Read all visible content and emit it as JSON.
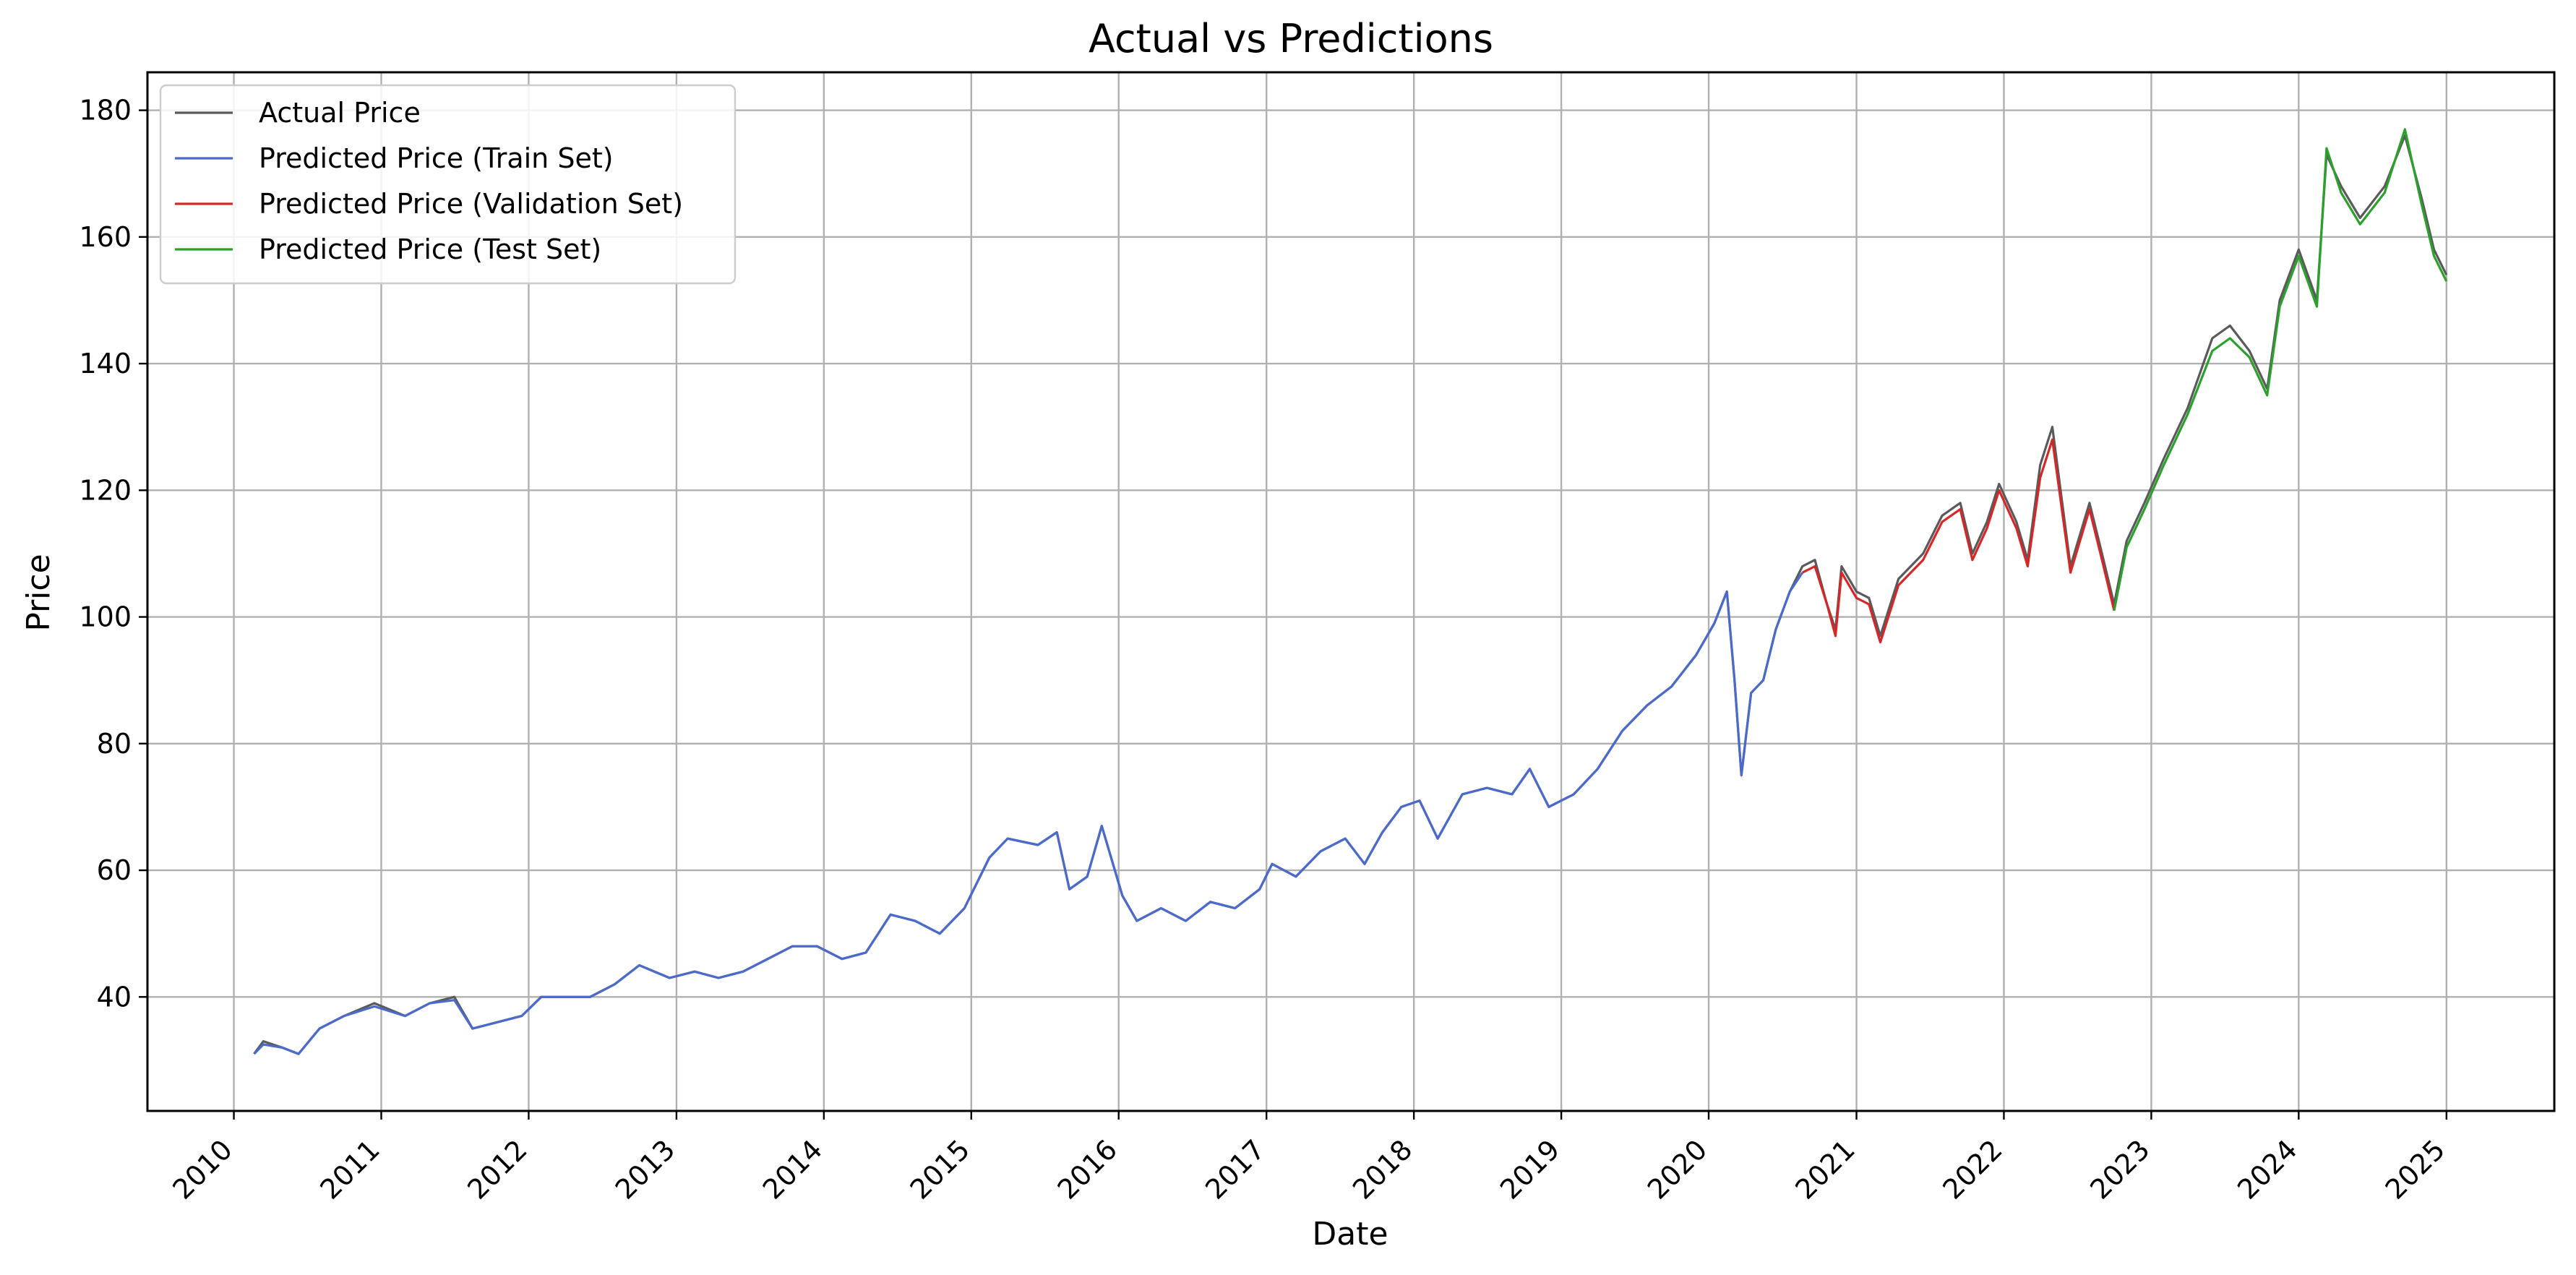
{
  "chart_data": {
    "type": "line",
    "title": "Actual vs Predictions",
    "xlabel": "Date",
    "ylabel": "Price",
    "xlim": [
      "2009-06-01",
      "2025-09-25"
    ],
    "ylim": [
      22,
      186
    ],
    "x_ticks": [
      "2010",
      "2011",
      "2012",
      "2013",
      "2014",
      "2015",
      "2016",
      "2017",
      "2018",
      "2019",
      "2020",
      "2021",
      "2022",
      "2023",
      "2024",
      "2025"
    ],
    "y_ticks": [
      40,
      60,
      80,
      100,
      120,
      140,
      160,
      180
    ],
    "grid": true,
    "legend_position": "upper-left",
    "series": [
      {
        "name": "Actual Price",
        "color": "#5a5a5a",
        "points": [
          [
            "2010-02-20",
            31
          ],
          [
            "2010-03-15",
            33
          ],
          [
            "2010-05-01",
            32
          ],
          [
            "2010-06-10",
            31
          ],
          [
            "2010-08-01",
            35
          ],
          [
            "2010-10-01",
            37
          ],
          [
            "2010-12-15",
            39
          ],
          [
            "2011-03-01",
            37
          ],
          [
            "2011-05-01",
            39
          ],
          [
            "2011-07-01",
            40
          ],
          [
            "2011-08-15",
            35
          ],
          [
            "2011-10-15",
            36
          ],
          [
            "2011-12-15",
            37
          ],
          [
            "2012-02-01",
            40
          ],
          [
            "2012-04-01",
            40
          ],
          [
            "2012-06-01",
            40
          ],
          [
            "2012-08-01",
            42
          ],
          [
            "2012-10-01",
            45
          ],
          [
            "2012-12-15",
            43
          ],
          [
            "2013-02-15",
            44
          ],
          [
            "2013-04-15",
            43
          ],
          [
            "2013-06-15",
            44
          ],
          [
            "2013-08-15",
            46
          ],
          [
            "2013-10-15",
            48
          ],
          [
            "2013-12-15",
            48
          ],
          [
            "2014-02-15",
            46
          ],
          [
            "2014-04-15",
            47
          ],
          [
            "2014-06-15",
            53
          ],
          [
            "2014-08-15",
            52
          ],
          [
            "2014-10-15",
            50
          ],
          [
            "2014-12-15",
            54
          ],
          [
            "2015-02-15",
            62
          ],
          [
            "2015-04-01",
            65
          ],
          [
            "2015-06-15",
            64
          ],
          [
            "2015-08-01",
            66
          ],
          [
            "2015-09-01",
            57
          ],
          [
            "2015-10-15",
            59
          ],
          [
            "2015-11-20",
            67
          ],
          [
            "2016-01-10",
            56
          ],
          [
            "2016-02-15",
            52
          ],
          [
            "2016-04-15",
            54
          ],
          [
            "2016-06-15",
            52
          ],
          [
            "2016-08-15",
            55
          ],
          [
            "2016-10-15",
            54
          ],
          [
            "2016-12-15",
            57
          ],
          [
            "2017-01-15",
            61
          ],
          [
            "2017-03-15",
            59
          ],
          [
            "2017-05-15",
            63
          ],
          [
            "2017-07-15",
            65
          ],
          [
            "2017-09-01",
            61
          ],
          [
            "2017-10-15",
            66
          ],
          [
            "2017-12-01",
            70
          ],
          [
            "2018-01-15",
            71
          ],
          [
            "2018-03-01",
            65
          ],
          [
            "2018-05-01",
            72
          ],
          [
            "2018-07-01",
            73
          ],
          [
            "2018-09-01",
            72
          ],
          [
            "2018-10-15",
            76
          ],
          [
            "2018-12-01",
            70
          ],
          [
            "2019-02-01",
            72
          ],
          [
            "2019-04-01",
            76
          ],
          [
            "2019-06-01",
            82
          ],
          [
            "2019-08-01",
            86
          ],
          [
            "2019-10-01",
            89
          ],
          [
            "2019-12-01",
            94
          ],
          [
            "2020-01-15",
            99
          ],
          [
            "2020-02-15",
            104
          ],
          [
            "2020-03-05",
            90
          ],
          [
            "2020-03-22",
            75
          ],
          [
            "2020-04-15",
            88
          ],
          [
            "2020-05-15",
            90
          ],
          [
            "2020-06-15",
            98
          ],
          [
            "2020-07-20",
            104
          ],
          [
            "2020-08-20",
            108
          ],
          [
            "2020-09-20",
            109
          ],
          [
            "2020-10-20",
            102
          ],
          [
            "2020-11-10",
            98
          ],
          [
            "2020-11-25",
            108
          ],
          [
            "2021-01-01",
            104
          ],
          [
            "2021-02-01",
            103
          ],
          [
            "2021-03-01",
            97
          ],
          [
            "2021-04-15",
            106
          ],
          [
            "2021-06-15",
            110
          ],
          [
            "2021-08-01",
            116
          ],
          [
            "2021-09-15",
            118
          ],
          [
            "2021-10-15",
            110
          ],
          [
            "2021-11-20",
            115
          ],
          [
            "2021-12-20",
            121
          ],
          [
            "2022-02-01",
            115
          ],
          [
            "2022-03-01",
            109
          ],
          [
            "2022-04-01",
            124
          ],
          [
            "2022-05-01",
            130
          ],
          [
            "2022-06-15",
            108
          ],
          [
            "2022-08-01",
            118
          ],
          [
            "2022-09-01",
            110
          ],
          [
            "2022-10-01",
            102
          ],
          [
            "2022-11-01",
            112
          ],
          [
            "2022-12-15",
            118
          ],
          [
            "2023-02-01",
            125
          ],
          [
            "2023-04-01",
            133
          ],
          [
            "2023-06-01",
            144
          ],
          [
            "2023-07-15",
            146
          ],
          [
            "2023-09-01",
            142
          ],
          [
            "2023-10-15",
            136
          ],
          [
            "2023-11-15",
            150
          ],
          [
            "2024-01-01",
            158
          ],
          [
            "2024-02-15",
            150
          ],
          [
            "2024-03-10",
            173
          ],
          [
            "2024-04-15",
            168
          ],
          [
            "2024-06-01",
            163
          ],
          [
            "2024-08-01",
            168
          ],
          [
            "2024-09-20",
            176
          ],
          [
            "2024-11-01",
            166
          ],
          [
            "2024-12-01",
            158
          ],
          [
            "2025-01-01",
            154
          ]
        ]
      },
      {
        "name": "Predicted Price (Train Set)",
        "color": "#4c6ac9",
        "points": [
          [
            "2010-02-20",
            31
          ],
          [
            "2010-03-15",
            32.5
          ],
          [
            "2010-05-01",
            32
          ],
          [
            "2010-06-10",
            31
          ],
          [
            "2010-08-01",
            35
          ],
          [
            "2010-10-01",
            37
          ],
          [
            "2010-12-15",
            38.5
          ],
          [
            "2011-03-01",
            37
          ],
          [
            "2011-05-01",
            39
          ],
          [
            "2011-07-01",
            39.5
          ],
          [
            "2011-08-15",
            35
          ],
          [
            "2011-10-15",
            36
          ],
          [
            "2011-12-15",
            37
          ],
          [
            "2012-02-01",
            40
          ],
          [
            "2012-04-01",
            40
          ],
          [
            "2012-06-01",
            40
          ],
          [
            "2012-08-01",
            42
          ],
          [
            "2012-10-01",
            45
          ],
          [
            "2012-12-15",
            43
          ],
          [
            "2013-02-15",
            44
          ],
          [
            "2013-04-15",
            43
          ],
          [
            "2013-06-15",
            44
          ],
          [
            "2013-08-15",
            46
          ],
          [
            "2013-10-15",
            48
          ],
          [
            "2013-12-15",
            48
          ],
          [
            "2014-02-15",
            46
          ],
          [
            "2014-04-15",
            47
          ],
          [
            "2014-06-15",
            53
          ],
          [
            "2014-08-15",
            52
          ],
          [
            "2014-10-15",
            50
          ],
          [
            "2014-12-15",
            54
          ],
          [
            "2015-02-15",
            62
          ],
          [
            "2015-04-01",
            65
          ],
          [
            "2015-06-15",
            64
          ],
          [
            "2015-08-01",
            66
          ],
          [
            "2015-09-01",
            57
          ],
          [
            "2015-10-15",
            59
          ],
          [
            "2015-11-20",
            67
          ],
          [
            "2016-01-10",
            56
          ],
          [
            "2016-02-15",
            52
          ],
          [
            "2016-04-15",
            54
          ],
          [
            "2016-06-15",
            52
          ],
          [
            "2016-08-15",
            55
          ],
          [
            "2016-10-15",
            54
          ],
          [
            "2016-12-15",
            57
          ],
          [
            "2017-01-15",
            61
          ],
          [
            "2017-03-15",
            59
          ],
          [
            "2017-05-15",
            63
          ],
          [
            "2017-07-15",
            65
          ],
          [
            "2017-09-01",
            61
          ],
          [
            "2017-10-15",
            66
          ],
          [
            "2017-12-01",
            70
          ],
          [
            "2018-01-15",
            71
          ],
          [
            "2018-03-01",
            65
          ],
          [
            "2018-05-01",
            72
          ],
          [
            "2018-07-01",
            73
          ],
          [
            "2018-09-01",
            72
          ],
          [
            "2018-10-15",
            76
          ],
          [
            "2018-12-01",
            70
          ],
          [
            "2019-02-01",
            72
          ],
          [
            "2019-04-01",
            76
          ],
          [
            "2019-06-01",
            82
          ],
          [
            "2019-08-01",
            86
          ],
          [
            "2019-10-01",
            89
          ],
          [
            "2019-12-01",
            94
          ],
          [
            "2020-01-15",
            99
          ],
          [
            "2020-02-15",
            104
          ],
          [
            "2020-03-05",
            90
          ],
          [
            "2020-03-22",
            75
          ],
          [
            "2020-04-15",
            88
          ],
          [
            "2020-05-15",
            90
          ],
          [
            "2020-06-15",
            98
          ],
          [
            "2020-07-20",
            104
          ],
          [
            "2020-08-20",
            107
          ]
        ]
      },
      {
        "name": "Predicted Price (Validation Set)",
        "color": "#d62728",
        "points": [
          [
            "2020-08-20",
            107
          ],
          [
            "2020-09-20",
            108
          ],
          [
            "2020-10-20",
            102
          ],
          [
            "2020-11-10",
            97
          ],
          [
            "2020-11-25",
            107
          ],
          [
            "2021-01-01",
            103
          ],
          [
            "2021-02-01",
            102
          ],
          [
            "2021-03-01",
            96
          ],
          [
            "2021-04-15",
            105
          ],
          [
            "2021-06-15",
            109
          ],
          [
            "2021-08-01",
            115
          ],
          [
            "2021-09-15",
            117
          ],
          [
            "2021-10-15",
            109
          ],
          [
            "2021-11-20",
            114
          ],
          [
            "2021-12-20",
            120
          ],
          [
            "2022-02-01",
            114
          ],
          [
            "2022-03-01",
            108
          ],
          [
            "2022-04-01",
            122
          ],
          [
            "2022-05-01",
            128
          ],
          [
            "2022-06-15",
            107
          ],
          [
            "2022-08-01",
            117
          ],
          [
            "2022-09-01",
            109
          ],
          [
            "2022-10-01",
            101
          ]
        ]
      },
      {
        "name": "Predicted Price (Test Set)",
        "color": "#2ca02c",
        "points": [
          [
            "2022-10-01",
            101
          ],
          [
            "2022-11-01",
            111
          ],
          [
            "2022-12-15",
            117
          ],
          [
            "2023-02-01",
            124
          ],
          [
            "2023-04-01",
            132
          ],
          [
            "2023-06-01",
            142
          ],
          [
            "2023-07-15",
            144
          ],
          [
            "2023-09-01",
            141
          ],
          [
            "2023-10-15",
            135
          ],
          [
            "2023-11-15",
            149
          ],
          [
            "2024-01-01",
            157
          ],
          [
            "2024-02-15",
            149
          ],
          [
            "2024-03-10",
            174
          ],
          [
            "2024-04-15",
            167
          ],
          [
            "2024-06-01",
            162
          ],
          [
            "2024-08-01",
            167
          ],
          [
            "2024-09-20",
            177
          ],
          [
            "2024-11-01",
            165
          ],
          [
            "2024-12-01",
            157
          ],
          [
            "2025-01-01",
            153
          ]
        ]
      }
    ]
  }
}
